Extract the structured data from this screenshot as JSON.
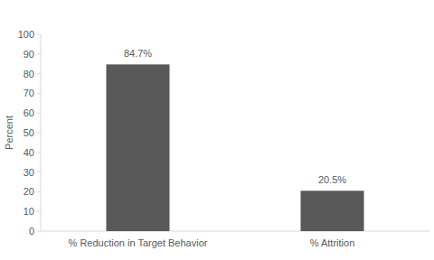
{
  "chart_data": {
    "type": "bar",
    "y_label": "Percent",
    "categories": [
      "% Reduction in Target Behavior",
      "% Attrition"
    ],
    "values": [
      84.7,
      20.5
    ],
    "value_labels": [
      "84.7%",
      "20.5%"
    ],
    "color": "#595959",
    "ylim": [
      0,
      100
    ],
    "yticks": [
      0,
      10,
      20,
      30,
      40,
      50,
      60,
      70,
      80,
      90,
      100
    ],
    "grid": false,
    "data_labels": true
  }
}
